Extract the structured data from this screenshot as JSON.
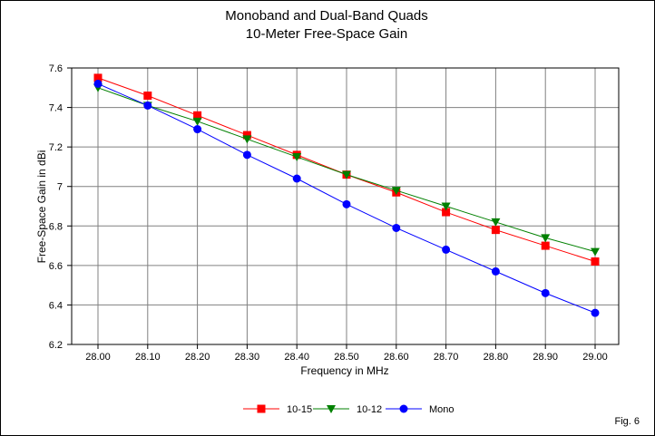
{
  "chart_data": {
    "type": "line",
    "title": "Monoband and Dual-Band Quads",
    "subtitle": "10-Meter Free-Space Gain",
    "xlabel": "Frequency in MHz",
    "ylabel": "Free-Space Gain in dBi",
    "categories": [
      "28.00",
      "28.10",
      "28.20",
      "28.30",
      "28.40",
      "28.50",
      "28.60",
      "28.70",
      "28.80",
      "28.90",
      "29.00"
    ],
    "ylim": [
      6.2,
      7.6
    ],
    "yticks": [
      "6.2",
      "6.4",
      "6.6",
      "6.8",
      "7",
      "7.2",
      "7.4",
      "7.6"
    ],
    "grid": true,
    "legend_position": "bottom-center",
    "series": [
      {
        "name": "10-15",
        "color": "#ff0000",
        "marker": "square",
        "values": [
          7.55,
          7.46,
          7.36,
          7.26,
          7.16,
          7.06,
          6.97,
          6.87,
          6.78,
          6.7,
          6.62
        ]
      },
      {
        "name": "10-12",
        "color": "#008000",
        "marker": "triangle-down",
        "values": [
          7.5,
          7.41,
          7.33,
          7.24,
          7.15,
          7.06,
          6.98,
          6.9,
          6.82,
          6.74,
          6.67
        ]
      },
      {
        "name": "Mono",
        "color": "#0000ff",
        "marker": "circle",
        "values": [
          7.52,
          7.41,
          7.29,
          7.16,
          7.04,
          6.91,
          6.79,
          6.68,
          6.57,
          6.46,
          6.36
        ]
      }
    ],
    "annotation": "Fig. 6"
  }
}
